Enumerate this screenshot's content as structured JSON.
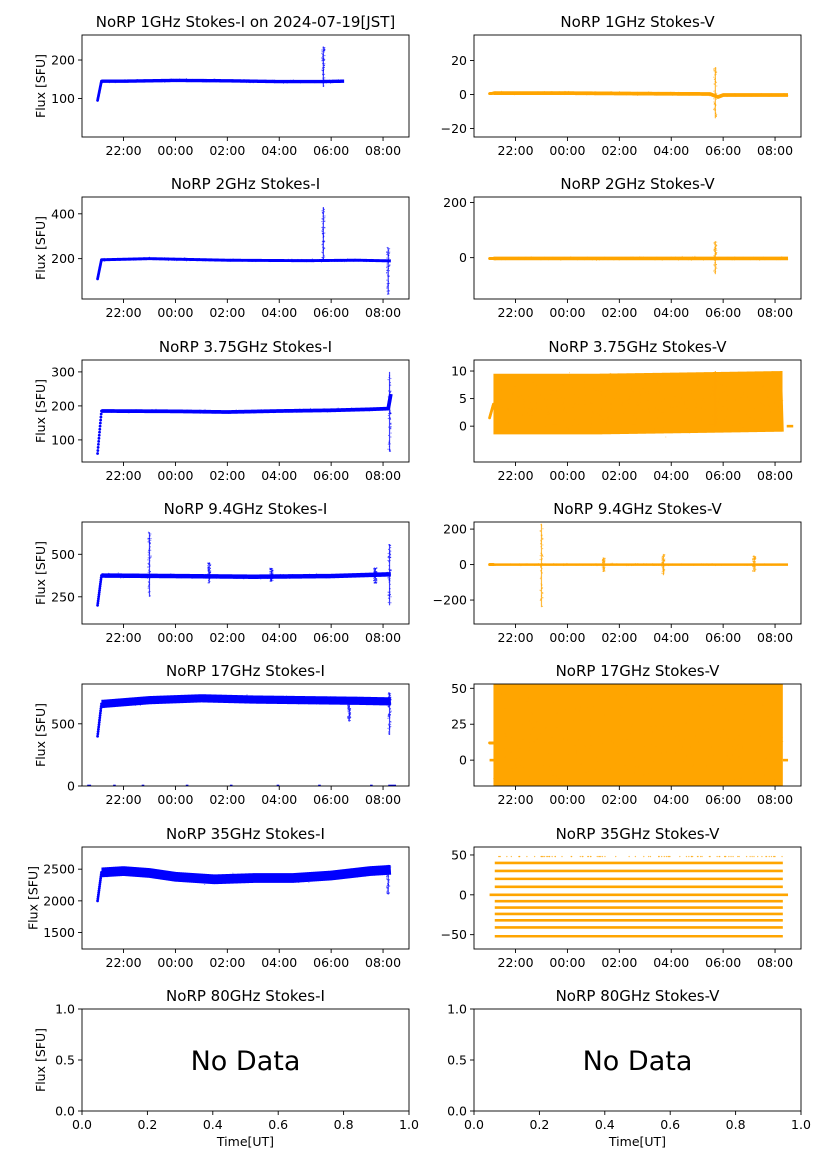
{
  "figure": {
    "suptitle": "NoRP 1GHz Stokes-I on 2024-07-19[JST]",
    "ylabel": "Flux [SFU]",
    "xlabel": "Time[UT]",
    "colors": {
      "stokes_i": "#0000ff",
      "stokes_v": "#ffa500",
      "axes": "#000000"
    }
  },
  "chart_data": [
    {
      "id": "1ghz-i",
      "type": "scatter",
      "title": "NoRP 1GHz Stokes-I on 2024-07-19[JST]",
      "ylabel": "Flux [SFU]",
      "color": "#0000ff",
      "xlim": [
        20.4,
        33.0
      ],
      "ylim": [
        0,
        265
      ],
      "xticks": [
        22,
        24,
        26,
        28,
        30,
        32
      ],
      "xticklabels": [
        "22:00",
        "00:00",
        "02:00",
        "04:00",
        "06:00",
        "08:00"
      ],
      "yticks": [
        100,
        200
      ],
      "yticklabels": [
        "100",
        "200"
      ],
      "data_end": 30.5,
      "step_start": 95,
      "step_end": 145,
      "baseline": [
        [
          21.1,
          145
        ],
        [
          22,
          145
        ],
        [
          24,
          147
        ],
        [
          26,
          146
        ],
        [
          28,
          144
        ],
        [
          29.6,
          144
        ],
        [
          30.5,
          145
        ]
      ],
      "noise": 2,
      "spikes": [
        [
          29.7,
          235,
          130
        ]
      ],
      "bands": []
    },
    {
      "id": "1ghz-v",
      "type": "scatter",
      "title": "NoRP 1GHz Stokes-V",
      "ylabel": "",
      "color": "#ffa500",
      "xlim": [
        20.4,
        33.0
      ],
      "ylim": [
        -25,
        35
      ],
      "xticks": [
        22,
        24,
        26,
        28,
        30,
        32
      ],
      "xticklabels": [
        "22:00",
        "00:00",
        "02:00",
        "04:00",
        "06:00",
        "08:00"
      ],
      "yticks": [
        -20,
        0,
        20
      ],
      "yticklabels": [
        "−20",
        "0",
        "20"
      ],
      "data_end": 32.5,
      "step_start": 0.5,
      "step_end": 0.8,
      "baseline": [
        [
          21.1,
          0.8
        ],
        [
          24,
          0.8
        ],
        [
          27,
          0.5
        ],
        [
          29.5,
          0.3
        ],
        [
          29.8,
          -1.5
        ],
        [
          30,
          -0.3
        ],
        [
          32.5,
          -0.3
        ]
      ],
      "noise": 0.5,
      "spikes": [
        [
          29.7,
          16,
          -14
        ]
      ],
      "bands": []
    },
    {
      "id": "2ghz-i",
      "type": "scatter",
      "title": "NoRP 2GHz Stokes-I",
      "ylabel": "Flux [SFU]",
      "color": "#0000ff",
      "xlim": [
        20.4,
        33.0
      ],
      "ylim": [
        20,
        475
      ],
      "xticks": [
        22,
        24,
        26,
        28,
        30,
        32
      ],
      "xticklabels": [
        "22:00",
        "00:00",
        "02:00",
        "04:00",
        "06:00",
        "08:00"
      ],
      "yticks": [
        200,
        400
      ],
      "yticklabels": [
        "200",
        "400"
      ],
      "data_end": 32.3,
      "step_start": 110,
      "step_end": 195,
      "baseline": [
        [
          21.2,
          195
        ],
        [
          23,
          200
        ],
        [
          26,
          193
        ],
        [
          29,
          191
        ],
        [
          31,
          193
        ],
        [
          32.3,
          190
        ]
      ],
      "noise": 3,
      "spikes": [
        [
          29.7,
          430,
          190
        ],
        [
          32.2,
          250,
          40
        ]
      ],
      "bands": []
    },
    {
      "id": "2ghz-v",
      "type": "scatter",
      "title": "NoRP 2GHz Stokes-V",
      "ylabel": "",
      "color": "#ffa500",
      "xlim": [
        20.4,
        33.0
      ],
      "ylim": [
        -150,
        220
      ],
      "xticks": [
        22,
        24,
        26,
        28,
        30,
        32
      ],
      "xticklabels": [
        "22:00",
        "00:00",
        "02:00",
        "04:00",
        "06:00",
        "08:00"
      ],
      "yticks": [
        0,
        200
      ],
      "yticklabels": [
        "0",
        "200"
      ],
      "data_end": 32.5,
      "step_start": -3,
      "step_end": -3,
      "baseline": [
        [
          21.1,
          -3
        ],
        [
          32.5,
          -3
        ]
      ],
      "noise": 3,
      "spikes": [
        [
          29.7,
          60,
          -60
        ]
      ],
      "bands": []
    },
    {
      "id": "3.75ghz-i",
      "type": "scatter",
      "title": "NoRP 3.75GHz Stokes-I",
      "ylabel": "Flux [SFU]",
      "color": "#0000ff",
      "xlim": [
        20.4,
        33.0
      ],
      "ylim": [
        35,
        335
      ],
      "xticks": [
        22,
        24,
        26,
        28,
        30,
        32
      ],
      "xticklabels": [
        "22:00",
        "00:00",
        "02:00",
        "04:00",
        "06:00",
        "08:00"
      ],
      "yticks": [
        100,
        200,
        300
      ],
      "yticklabels": [
        "100",
        "200",
        "300"
      ],
      "data_end": 32.3,
      "step_start": 60,
      "step_end": 185,
      "baseline": [
        [
          21.2,
          185
        ],
        [
          24,
          184
        ],
        [
          26,
          182
        ],
        [
          28,
          185
        ],
        [
          30,
          187
        ],
        [
          31.5,
          190
        ],
        [
          32.2,
          192
        ],
        [
          32.3,
          235
        ]
      ],
      "noise": 2.5,
      "spikes": [
        [
          32.25,
          300,
          65
        ]
      ],
      "bands": []
    },
    {
      "id": "3.75ghz-v",
      "type": "scatter",
      "title": "NoRP 3.75GHz Stokes-V",
      "ylabel": "",
      "color": "#ffa500",
      "xlim": [
        20.4,
        33.0
      ],
      "ylim": [
        -6.5,
        12
      ],
      "xticks": [
        22,
        24,
        26,
        28,
        30,
        32
      ],
      "xticklabels": [
        "22:00",
        "00:00",
        "02:00",
        "04:00",
        "06:00",
        "08:00"
      ],
      "yticks": [
        0,
        5,
        10
      ],
      "yticklabels": [
        "0",
        "5",
        "10"
      ],
      "data_end": 32.3,
      "step_start": 1.5,
      "step_end": 4.0,
      "baseline": [
        [
          21.3,
          4
        ],
        [
          25,
          4
        ],
        [
          28,
          4.2
        ],
        [
          32.3,
          4.5
        ]
      ],
      "noise": 2.5,
      "spikes": [
        [
          29.7,
          10,
          0
        ]
      ],
      "bands": [
        {
          "y": 0,
          "segments": [
            [
              23.4,
              23.6
            ],
            [
              26.45,
              26.65
            ],
            [
              29.45,
              29.65
            ],
            [
              32.45,
              32.7
            ]
          ]
        }
      ]
    },
    {
      "id": "9.4ghz-i",
      "type": "scatter",
      "title": "NoRP 9.4GHz Stokes-I",
      "ylabel": "Flux [SFU]",
      "color": "#0000ff",
      "xlim": [
        20.4,
        33.0
      ],
      "ylim": [
        90,
        690
      ],
      "xticks": [
        22,
        24,
        26,
        28,
        30,
        32
      ],
      "xticklabels": [
        "22:00",
        "00:00",
        "02:00",
        "04:00",
        "06:00",
        "08:00"
      ],
      "yticks": [
        250,
        500
      ],
      "yticklabels": [
        "250",
        "500"
      ],
      "data_end": 32.3,
      "step_start": 200,
      "step_end": 375,
      "baseline": [
        [
          21.2,
          375
        ],
        [
          24,
          372
        ],
        [
          27,
          368
        ],
        [
          30,
          372
        ],
        [
          32.2,
          382
        ]
      ],
      "noise": 6,
      "spikes": [
        [
          23.0,
          630,
          250
        ],
        [
          25.3,
          450,
          330
        ],
        [
          32.25,
          560,
          200
        ],
        [
          31.7,
          420,
          330
        ],
        [
          27.7,
          420,
          340
        ]
      ],
      "bands": []
    },
    {
      "id": "9.4ghz-v",
      "type": "scatter",
      "title": "NoRP 9.4GHz Stokes-V",
      "ylabel": "",
      "color": "#ffa500",
      "xlim": [
        20.4,
        33.0
      ],
      "ylim": [
        -335,
        240
      ],
      "xticks": [
        22,
        24,
        26,
        28,
        30,
        32
      ],
      "xticklabels": [
        "22:00",
        "00:00",
        "02:00",
        "04:00",
        "06:00",
        "08:00"
      ],
      "yticks": [
        -200,
        0,
        200
      ],
      "yticklabels": [
        "−200",
        "0",
        "200"
      ],
      "data_end": 32.5,
      "step_start": 0,
      "step_end": 0,
      "baseline": [
        [
          21.1,
          0
        ],
        [
          32.5,
          0
        ]
      ],
      "noise": 3,
      "spikes": [
        [
          23.0,
          230,
          -240
        ],
        [
          27.7,
          60,
          -60
        ],
        [
          31.2,
          50,
          -40
        ],
        [
          25.4,
          40,
          -40
        ]
      ],
      "bands": []
    },
    {
      "id": "17ghz-i",
      "type": "scatter",
      "title": "NoRP 17GHz Stokes-I",
      "ylabel": "Flux [SFU]",
      "color": "#0000ff",
      "xlim": [
        20.4,
        33.0
      ],
      "ylim": [
        0,
        820
      ],
      "xticks": [
        22,
        24,
        26,
        28,
        30,
        32
      ],
      "xticklabels": [
        "22:00",
        "00:00",
        "02:00",
        "04:00",
        "06:00",
        "08:00"
      ],
      "yticks": [
        0,
        500
      ],
      "yticklabels": [
        "0",
        "500"
      ],
      "data_end": 32.3,
      "step_start": 400,
      "step_end": 660,
      "baseline": [
        [
          21.2,
          660
        ],
        [
          23,
          690
        ],
        [
          25,
          705
        ],
        [
          27,
          695
        ],
        [
          29,
          690
        ],
        [
          31,
          685
        ],
        [
          32.3,
          680
        ]
      ],
      "noise": 15,
      "spikes": [
        [
          32.25,
          750,
          410
        ],
        [
          30.7,
          690,
          520
        ]
      ],
      "bands": [
        {
          "y": 0,
          "segments": [
            [
              20.6,
              20.75
            ],
            [
              21.6,
              21.7
            ],
            [
              22.7,
              22.8
            ],
            [
              24.4,
              24.5
            ],
            [
              26.1,
              26.2
            ],
            [
              27.9,
              28.0
            ],
            [
              29.5,
              29.6
            ],
            [
              31.5,
              31.6
            ],
            [
              32.2,
              32.5
            ]
          ]
        }
      ]
    },
    {
      "id": "17ghz-v",
      "type": "scatter",
      "title": "NoRP 17GHz Stokes-V",
      "ylabel": "",
      "color": "#ffa500",
      "xlim": [
        20.4,
        33.0
      ],
      "ylim": [
        -18,
        53
      ],
      "xticks": [
        22,
        24,
        26,
        28,
        30,
        32
      ],
      "xticklabels": [
        "22:00",
        "00:00",
        "02:00",
        "04:00",
        "06:00",
        "08:00"
      ],
      "yticks": [
        0,
        25,
        50
      ],
      "yticklabels": [
        "0",
        "25",
        "50"
      ],
      "data_end": 32.3,
      "step_start": 12,
      "step_end": 12,
      "baseline": [
        [
          21.2,
          12
        ],
        [
          32.3,
          12
        ]
      ],
      "noise": 22,
      "spikes": [],
      "bands": [
        {
          "y": 0,
          "segments": [
            [
              21.0,
              21.2
            ],
            [
              32.3,
              32.5
            ]
          ]
        }
      ]
    },
    {
      "id": "35ghz-i",
      "type": "scatter",
      "title": "NoRP 35GHz Stokes-I",
      "ylabel": "Flux [SFU]",
      "color": "#0000ff",
      "xlim": [
        20.4,
        33.0
      ],
      "ylim": [
        1240,
        2850
      ],
      "xticks": [
        22,
        24,
        26,
        28,
        30,
        32
      ],
      "xticklabels": [
        "22:00",
        "00:00",
        "02:00",
        "04:00",
        "06:00",
        "08:00"
      ],
      "yticks": [
        1500,
        2000,
        2500
      ],
      "yticklabels": [
        "1500",
        "2000",
        "2500"
      ],
      "data_end": 32.3,
      "step_start": 2000,
      "step_end": 2450,
      "baseline": [
        [
          21.2,
          2450
        ],
        [
          22,
          2470
        ],
        [
          23,
          2440
        ],
        [
          24,
          2380
        ],
        [
          25.5,
          2340
        ],
        [
          27,
          2360
        ],
        [
          28.5,
          2360
        ],
        [
          30,
          2400
        ],
        [
          31.5,
          2470
        ],
        [
          32.3,
          2490
        ]
      ],
      "noise": 35,
      "spikes": [
        [
          32.2,
          2560,
          2100
        ]
      ],
      "bands": []
    },
    {
      "id": "35ghz-v",
      "type": "scatter",
      "title": "NoRP 35GHz Stokes-V",
      "ylabel": "",
      "color": "#ffa500",
      "xlim": [
        20.4,
        33.0
      ],
      "ylim": [
        -68,
        60
      ],
      "xticks": [
        22,
        24,
        26,
        28,
        30,
        32
      ],
      "xticklabels": [
        "22:00",
        "00:00",
        "02:00",
        "04:00",
        "06:00",
        "08:00"
      ],
      "yticks": [
        -50,
        0,
        50
      ],
      "yticklabels": [
        "−50",
        "0",
        "50"
      ],
      "data_end": 32.3,
      "step_start": 0,
      "step_end": 0,
      "baseline": [],
      "noise": 0,
      "spikes": [],
      "bands": [
        {
          "y": 40,
          "segments": [
            [
              21.2,
              32.3
            ]
          ]
        },
        {
          "y": 30,
          "segments": [
            [
              21.2,
              32.3
            ]
          ]
        },
        {
          "y": 20,
          "segments": [
            [
              21.2,
              32.3
            ]
          ]
        },
        {
          "y": 10,
          "segments": [
            [
              21.2,
              32.3
            ]
          ]
        },
        {
          "y": 0,
          "segments": [
            [
              21.0,
              32.5
            ]
          ]
        },
        {
          "y": -8,
          "segments": [
            [
              21.2,
              32.3
            ]
          ]
        },
        {
          "y": -16,
          "segments": [
            [
              21.2,
              32.3
            ]
          ]
        },
        {
          "y": -24,
          "segments": [
            [
              21.2,
              32.3
            ]
          ]
        },
        {
          "y": -32,
          "segments": [
            [
              21.2,
              32.3
            ]
          ]
        },
        {
          "y": -41,
          "segments": [
            [
              21.2,
              32.3
            ]
          ]
        },
        {
          "y": -52,
          "segments": [
            [
              21.2,
              32.3
            ]
          ]
        }
      ],
      "sparse_rows": [
        48,
        -52
      ]
    },
    {
      "id": "80ghz-i",
      "type": "scatter",
      "title": "NoRP 80GHz Stokes-I",
      "ylabel": "Flux [SFU]",
      "xlabel": "Time[UT]",
      "color": "#0000ff",
      "xlim": [
        0,
        1
      ],
      "ylim": [
        0,
        1
      ],
      "xticks": [
        0,
        0.2,
        0.4,
        0.6,
        0.8,
        1.0
      ],
      "xticklabels": [
        "0.0",
        "0.2",
        "0.4",
        "0.6",
        "0.8",
        "1.0"
      ],
      "yticks": [
        0,
        0.5,
        1.0
      ],
      "yticklabels": [
        "0.0",
        "0.5",
        "1.0"
      ],
      "annotation": "No Data"
    },
    {
      "id": "80ghz-v",
      "type": "scatter",
      "title": "NoRP 80GHz Stokes-V",
      "ylabel": "",
      "xlabel": "Time[UT]",
      "color": "#ffa500",
      "xlim": [
        0,
        1
      ],
      "ylim": [
        0,
        1
      ],
      "xticks": [
        0,
        0.2,
        0.4,
        0.6,
        0.8,
        1.0
      ],
      "xticklabels": [
        "0.0",
        "0.2",
        "0.4",
        "0.6",
        "0.8",
        "1.0"
      ],
      "yticks": [
        0,
        0.5,
        1.0
      ],
      "yticklabels": [
        "0.0",
        "0.5",
        "1.0"
      ],
      "annotation": "No Data"
    }
  ]
}
